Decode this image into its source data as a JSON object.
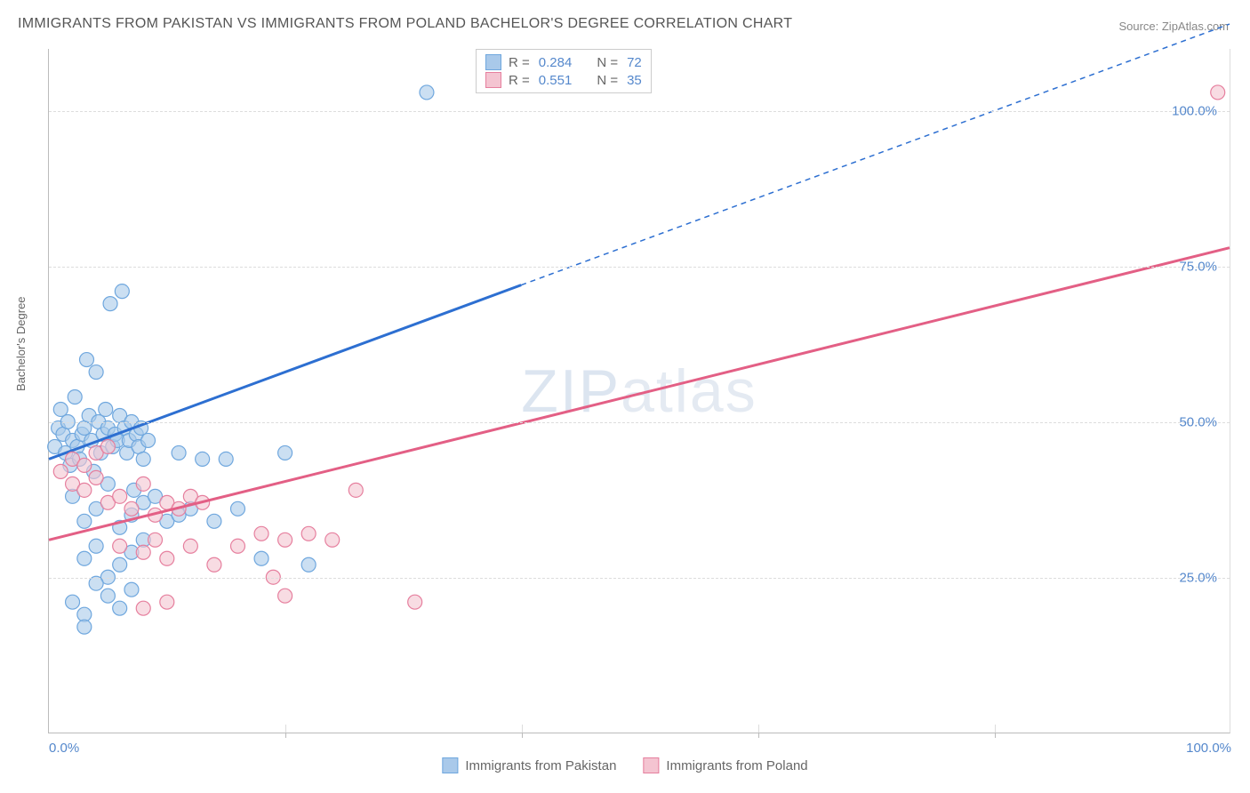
{
  "title": "IMMIGRANTS FROM PAKISTAN VS IMMIGRANTS FROM POLAND BACHELOR'S DEGREE CORRELATION CHART",
  "source": "Source: ZipAtlas.com",
  "ylabel": "Bachelor's Degree",
  "watermark": "ZIPatlas",
  "chart": {
    "type": "scatter",
    "xlim": [
      0,
      100
    ],
    "ylim": [
      0,
      110
    ],
    "grid_color": "#dddddd",
    "axis_color": "#bbbbbb",
    "background_color": "#ffffff",
    "y_gridlines": [
      25,
      50,
      75,
      100
    ],
    "y_tick_labels": [
      "25.0%",
      "50.0%",
      "75.0%",
      "100.0%"
    ],
    "x_ticks": [
      0,
      20,
      40,
      60,
      80,
      100
    ],
    "x_tick_labels": [
      "0.0%",
      "",
      "",
      "",
      "",
      "100.0%"
    ],
    "marker_radius": 8,
    "marker_stroke_width": 1.2,
    "line_width": 3,
    "series": [
      {
        "name": "Immigrants from Pakistan",
        "color_fill": "#a9c9ea",
        "color_stroke": "#6fa7de",
        "line_color": "#2d6fd1",
        "R": "0.284",
        "N": "72",
        "regression": {
          "x1": 0,
          "y1": 44,
          "x2": 40,
          "y2": 72,
          "x2_dash": 100,
          "y2_dash": 114
        },
        "points": [
          [
            0.5,
            46
          ],
          [
            0.8,
            49
          ],
          [
            1,
            52
          ],
          [
            1.2,
            48
          ],
          [
            1.4,
            45
          ],
          [
            1.6,
            50
          ],
          [
            1.8,
            43
          ],
          [
            2,
            47
          ],
          [
            2.2,
            54
          ],
          [
            2.4,
            46
          ],
          [
            2.6,
            44
          ],
          [
            2.8,
            48
          ],
          [
            3,
            49
          ],
          [
            3.2,
            60
          ],
          [
            3.4,
            51
          ],
          [
            3.6,
            47
          ],
          [
            3.8,
            42
          ],
          [
            4,
            58
          ],
          [
            4.2,
            50
          ],
          [
            4.4,
            45
          ],
          [
            4.6,
            48
          ],
          [
            4.8,
            52
          ],
          [
            5,
            49
          ],
          [
            5.2,
            69
          ],
          [
            5.4,
            46
          ],
          [
            5.6,
            48
          ],
          [
            5.8,
            47
          ],
          [
            6,
            51
          ],
          [
            6.2,
            71
          ],
          [
            6.4,
            49
          ],
          [
            6.6,
            45
          ],
          [
            6.8,
            47
          ],
          [
            7,
            50
          ],
          [
            7.2,
            39
          ],
          [
            7.4,
            48
          ],
          [
            7.6,
            46
          ],
          [
            7.8,
            49
          ],
          [
            8,
            44
          ],
          [
            8.4,
            47
          ],
          [
            2,
            38
          ],
          [
            3,
            34
          ],
          [
            4,
            36
          ],
          [
            5,
            40
          ],
          [
            6,
            33
          ],
          [
            7,
            35
          ],
          [
            8,
            37
          ],
          [
            9,
            38
          ],
          [
            10,
            34
          ],
          [
            11,
            45
          ],
          [
            12,
            36
          ],
          [
            13,
            44
          ],
          [
            3,
            28
          ],
          [
            4,
            30
          ],
          [
            5,
            25
          ],
          [
            6,
            27
          ],
          [
            7,
            29
          ],
          [
            8,
            31
          ],
          [
            2,
            21
          ],
          [
            3,
            19
          ],
          [
            4,
            24
          ],
          [
            5,
            22
          ],
          [
            6,
            20
          ],
          [
            7,
            23
          ],
          [
            3,
            17
          ],
          [
            11,
            35
          ],
          [
            14,
            34
          ],
          [
            16,
            36
          ],
          [
            18,
            28
          ],
          [
            22,
            27
          ],
          [
            20,
            45
          ],
          [
            15,
            44
          ],
          [
            32,
            103
          ]
        ]
      },
      {
        "name": "Immigrants from Poland",
        "color_fill": "#f4c4d1",
        "color_stroke": "#e67f9e",
        "line_color": "#e35f85",
        "R": "0.551",
        "N": "35",
        "regression": {
          "x1": 0,
          "y1": 31,
          "x2": 100,
          "y2": 78,
          "x2_dash": 100,
          "y2_dash": 78
        },
        "points": [
          [
            1,
            42
          ],
          [
            2,
            44
          ],
          [
            3,
            43
          ],
          [
            4,
            45
          ],
          [
            5,
            46
          ],
          [
            2,
            40
          ],
          [
            3,
            39
          ],
          [
            4,
            41
          ],
          [
            5,
            37
          ],
          [
            6,
            38
          ],
          [
            7,
            36
          ],
          [
            8,
            40
          ],
          [
            9,
            35
          ],
          [
            10,
            37
          ],
          [
            11,
            36
          ],
          [
            12,
            38
          ],
          [
            13,
            37
          ],
          [
            6,
            30
          ],
          [
            8,
            29
          ],
          [
            9,
            31
          ],
          [
            10,
            28
          ],
          [
            12,
            30
          ],
          [
            14,
            27
          ],
          [
            16,
            30
          ],
          [
            18,
            32
          ],
          [
            20,
            31
          ],
          [
            22,
            32
          ],
          [
            19,
            25
          ],
          [
            20,
            22
          ],
          [
            24,
            31
          ],
          [
            26,
            39
          ],
          [
            8,
            20
          ],
          [
            10,
            21
          ],
          [
            31,
            21
          ],
          [
            99,
            103
          ]
        ]
      }
    ]
  },
  "stats_legend": {
    "rows": [
      {
        "swatch_fill": "#a9c9ea",
        "swatch_stroke": "#6fa7de",
        "R_label": "R =",
        "R": "0.284",
        "N_label": "N =",
        "N": "72"
      },
      {
        "swatch_fill": "#f4c4d1",
        "swatch_stroke": "#e67f9e",
        "R_label": "R =",
        "R": "0.551",
        "N_label": "N =",
        "N": "35"
      }
    ]
  },
  "bottom_legend": [
    {
      "swatch_fill": "#a9c9ea",
      "swatch_stroke": "#6fa7de",
      "label": "Immigrants from Pakistan"
    },
    {
      "swatch_fill": "#f4c4d1",
      "swatch_stroke": "#e67f9e",
      "label": "Immigrants from Poland"
    }
  ]
}
